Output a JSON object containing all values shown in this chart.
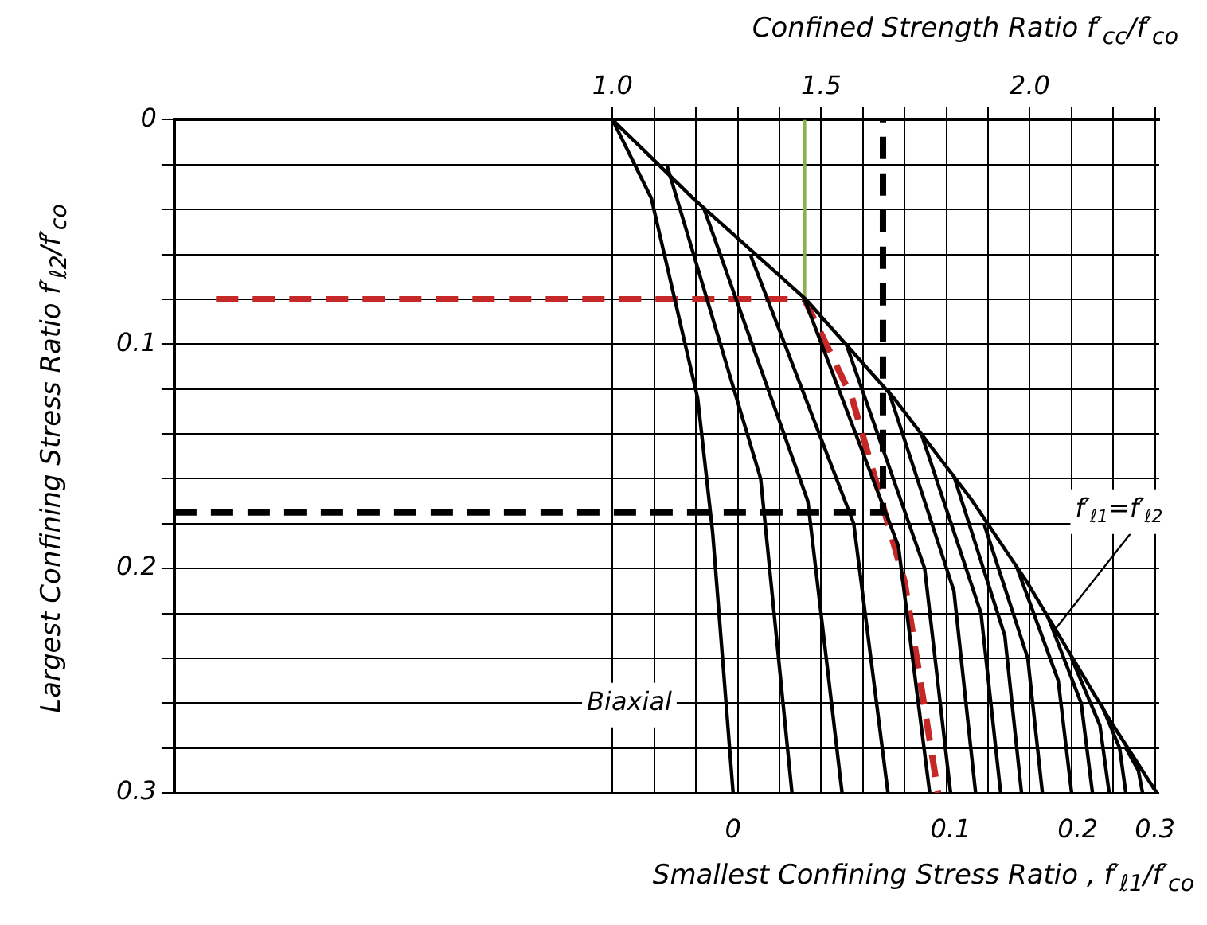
{
  "chart_data": {
    "type": "line",
    "xlabel": "Confined Strength Ratio  f′$_{cc}$/f′$_{co}$",
    "ylabel": "Largest Confining Stress Ratio  f′$_{ℓ2}$/f′$_{co}$",
    "subtitle": "Smallest Confining Stress Ratio , f′$_{ℓ1}$/f′$_{co}$",
    "xlim": [
      -0.05,
      2.31
    ],
    "xticks": [
      {
        "value": 1.0,
        "label": "1.0"
      },
      {
        "value": 1.1,
        "label": null
      },
      {
        "value": 1.2,
        "label": null
      },
      {
        "value": 1.3,
        "label": null
      },
      {
        "value": 1.4,
        "label": null
      },
      {
        "value": 1.5,
        "label": "1.5"
      },
      {
        "value": 1.6,
        "label": null
      },
      {
        "value": 1.7,
        "label": null
      },
      {
        "value": 1.8,
        "label": null
      },
      {
        "value": 1.9,
        "label": null
      },
      {
        "value": 2.0,
        "label": "2.0"
      },
      {
        "value": 2.1,
        "label": null
      },
      {
        "value": 2.2,
        "label": null
      },
      {
        "value": 2.3,
        "label": null
      }
    ],
    "ylim": [
      0.3,
      0
    ],
    "yticks": [
      0,
      {
        "value": 0.02,
        "label": null
      },
      {
        "value": 0.04,
        "label": null
      },
      {
        "value": 0.06,
        "label": null
      },
      {
        "value": 0.08,
        "label": null
      },
      0.1,
      {
        "value": 0.12,
        "label": null
      },
      {
        "value": 0.14,
        "label": null
      },
      {
        "value": 0.16,
        "label": null
      },
      {
        "value": 0.18,
        "label": null
      },
      0.2,
      {
        "value": 0.22,
        "label": null
      },
      {
        "value": 0.24,
        "label": null
      },
      {
        "value": 0.26,
        "label": null
      },
      {
        "value": 0.28,
        "label": null
      },
      0.3
    ],
    "grid": true,
    "marker": "none",
    "line_style": "solid",
    "series": [
      {
        "color": "#000000",
        "x": [
          1.0,
          1.193,
          1.463,
          1.674,
          1.859,
          1.993,
          2.193,
          2.304
        ],
        "values": [
          0,
          0.035,
          0.08,
          0.124,
          0.169,
          0.206,
          0.268,
          0.3
        ]
      },
      {
        "color": "#000000",
        "x": [
          1.0,
          1.093,
          1.204,
          1.24,
          1.289
        ],
        "values": [
          0,
          0.035,
          0.124,
          0.184,
          0.3
        ]
      },
      {
        "color": "#000000",
        "x": [
          1.13,
          1.355,
          1.43
        ],
        "values": [
          0.02,
          0.16,
          0.3
        ]
      },
      {
        "color": "#000000",
        "x": [
          1.22,
          1.468,
          1.55
        ],
        "values": [
          0.04,
          0.17,
          0.3
        ]
      },
      {
        "color": "#000000",
        "x": [
          1.33,
          1.578,
          1.66
        ],
        "values": [
          0.06,
          0.18,
          0.3
        ]
      },
      {
        "color": "#000000",
        "x": [
          1.46,
          1.685,
          1.76
        ],
        "values": [
          0.08,
          0.19,
          0.3
        ]
      },
      {
        "color": "#000000",
        "x": [
          1.56,
          1.748,
          1.81
        ],
        "values": [
          0.1,
          0.2,
          0.3
        ]
      },
      {
        "color": "#000000",
        "x": [
          1.66,
          1.818,
          1.87
        ],
        "values": [
          0.12,
          0.21,
          0.3
        ]
      },
      {
        "color": "#000000",
        "x": [
          1.74,
          1.883,
          1.93
        ],
        "values": [
          0.14,
          0.22,
          0.3
        ]
      },
      {
        "color": "#000000",
        "x": [
          1.82,
          1.94,
          1.98
        ],
        "values": [
          0.16,
          0.23,
          0.3
        ]
      },
      {
        "color": "#000000",
        "x": [
          1.89,
          1.995,
          2.03
        ],
        "values": [
          0.18,
          0.24,
          0.3
        ]
      },
      {
        "color": "#000000",
        "x": [
          1.97,
          2.068,
          2.1
        ],
        "values": [
          0.2,
          0.25,
          0.3
        ]
      },
      {
        "color": "#000000",
        "x": [
          2.04,
          2.123,
          2.15
        ],
        "values": [
          0.22,
          0.26,
          0.3
        ]
      },
      {
        "color": "#000000",
        "x": [
          2.1,
          2.168,
          2.19
        ],
        "values": [
          0.24,
          0.27,
          0.3
        ]
      },
      {
        "color": "#000000",
        "x": [
          2.17,
          2.215,
          2.23
        ],
        "values": [
          0.26,
          0.28,
          0.3
        ]
      },
      {
        "color": "#000000",
        "x": [
          2.23,
          2.26,
          2.27
        ],
        "values": [
          0.28,
          0.29,
          0.3
        ]
      },
      {
        "color": "#000000",
        "line_style": "dashed",
        "x": [
          -0.05,
          1.648,
          1.648
        ],
        "values": [
          0.175,
          0.175,
          0
        ]
      },
      {
        "color": "#c62828",
        "line_style": "dashed",
        "x": [
          0.05,
          1.46
        ],
        "values": [
          0.08,
          0.08
        ]
      },
      {
        "color": "#c62828",
        "line_style": "dashed",
        "x": [
          1.46,
          1.574,
          1.7,
          1.78
        ],
        "values": [
          0.08,
          0.124,
          0.206,
          0.3
        ]
      },
      {
        "color": "#8db050",
        "x": [
          1.46,
          1.46
        ],
        "values": [
          0.08,
          0
        ]
      }
    ],
    "annotations": [
      {
        "text": "Biaxial",
        "x": 1.272,
        "y": 0.26
      },
      {
        "text": "f′$_{ℓ1}$=f′$_{ℓ2}$",
        "x": 2.061,
        "y": 0.227
      },
      {
        "text": "0",
        "x": 1.289,
        "y": 0.3
      },
      {
        "text": "0.1",
        "x": 1.81,
        "y": 0.3
      },
      {
        "text": "0.2",
        "x": 2.115,
        "y": 0.3
      },
      {
        "text": "0.3",
        "x": 2.3,
        "y": 0.3
      }
    ]
  }
}
